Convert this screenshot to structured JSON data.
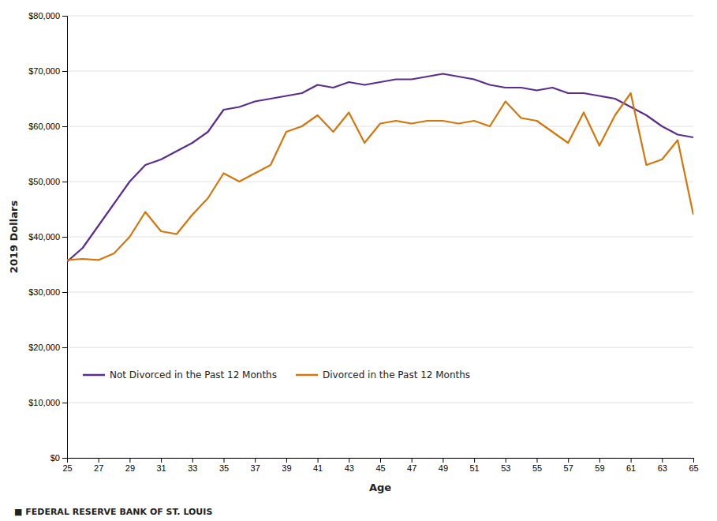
{
  "chart_data": {
    "type": "line",
    "xlabel": "Age",
    "ylabel": "2019 Dollars",
    "x": [
      25,
      26,
      27,
      28,
      29,
      30,
      31,
      32,
      33,
      34,
      35,
      36,
      37,
      38,
      39,
      40,
      41,
      42,
      43,
      44,
      45,
      46,
      47,
      48,
      49,
      50,
      51,
      52,
      53,
      54,
      55,
      56,
      57,
      58,
      59,
      60,
      61,
      62,
      63,
      64,
      65
    ],
    "series": [
      {
        "name": "Not Divorced in the Past 12 Months",
        "color": "#5b2d8e",
        "values": [
          35500,
          38000,
          42000,
          46000,
          50000,
          53000,
          54000,
          55500,
          57000,
          59000,
          63000,
          63500,
          64500,
          65000,
          65500,
          66000,
          67500,
          67000,
          68000,
          67500,
          68000,
          68500,
          68500,
          69000,
          69500,
          69000,
          68500,
          67500,
          67000,
          67000,
          66500,
          67000,
          66000,
          66000,
          65500,
          65000,
          63500,
          62000,
          60000,
          58500,
          58000
        ]
      },
      {
        "name": "Divorced in the Past 12 Months",
        "color": "#d4760a",
        "values": [
          35800,
          36000,
          35800,
          37000,
          40000,
          44500,
          41000,
          40500,
          44000,
          47000,
          51500,
          50000,
          51500,
          53000,
          59000,
          60000,
          62000,
          59000,
          62500,
          57000,
          60500,
          61000,
          60500,
          61000,
          61000,
          60500,
          61000,
          60000,
          64500,
          61500,
          61000,
          59000,
          57000,
          62500,
          56500,
          62000,
          66000,
          53000,
          54000,
          57500,
          44000
        ]
      }
    ],
    "xlim": [
      25,
      65
    ],
    "xticks": [
      25,
      27,
      29,
      31,
      33,
      35,
      37,
      39,
      41,
      43,
      45,
      47,
      49,
      51,
      53,
      55,
      57,
      59,
      61,
      63,
      65
    ],
    "ylim": [
      0,
      80000
    ],
    "yticks": [
      {
        "value": 0,
        "label": "$0"
      },
      {
        "value": 10000,
        "label": "$10,000"
      },
      {
        "value": 20000,
        "label": "$20,000"
      },
      {
        "value": 30000,
        "label": "$30,000"
      },
      {
        "value": 40000,
        "label": "$40,000"
      },
      {
        "value": 50000,
        "label": "$50,000"
      },
      {
        "value": 60000,
        "label": "$60,000"
      },
      {
        "value": 70000,
        "label": "$70,000"
      },
      {
        "value": 80000,
        "label": "$80,000"
      }
    ],
    "grid": "y",
    "legend": "lower left",
    "annotations": [
      "■  FEDERAL RESERVE BANK OF ST. LOUIS"
    ]
  }
}
